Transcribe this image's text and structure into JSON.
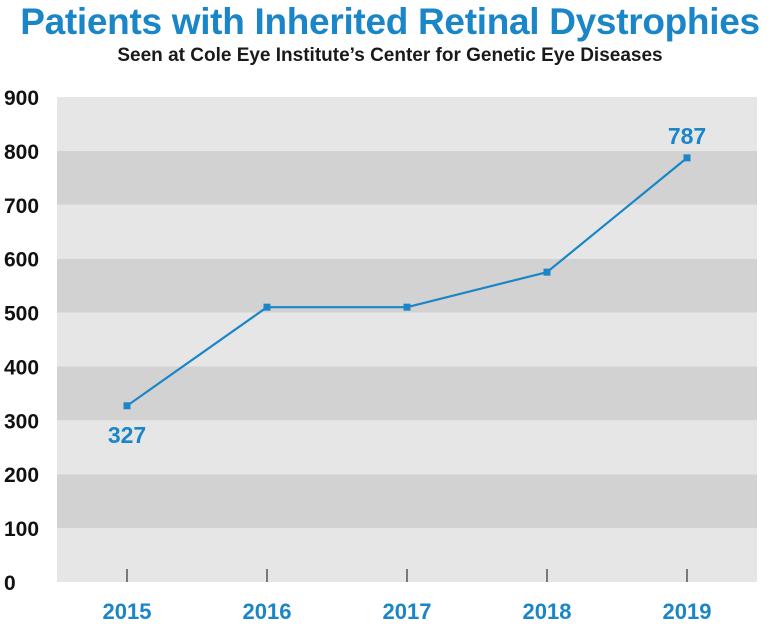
{
  "chart_data": {
    "type": "line",
    "title": "Patients with Inherited Retinal Dystrophies",
    "subtitle": "Seen at Cole Eye Institute’s Center for Genetic Eye Diseases",
    "categories": [
      "2015",
      "2016",
      "2017",
      "2018",
      "2019"
    ],
    "series": [
      {
        "values": [
          327,
          510,
          510,
          575,
          787
        ]
      }
    ],
    "data_labels": [
      {
        "category": "2015",
        "value": 327,
        "text": "327",
        "position": "below"
      },
      {
        "category": "2019",
        "value": 787,
        "text": "787",
        "position": "above"
      }
    ],
    "ylim": [
      0,
      900
    ],
    "yticks": [
      {
        "value": 0,
        "label": "0"
      },
      {
        "value": 100,
        "label": "100"
      },
      {
        "value": 200,
        "label": "200"
      },
      {
        "value": 300,
        "label": "300"
      },
      {
        "value": 400,
        "label": "400"
      },
      {
        "value": 500,
        "label": "500"
      },
      {
        "value": 600,
        "label": "600"
      },
      {
        "value": 700,
        "label": "700"
      },
      {
        "value": 800,
        "label": "800"
      },
      {
        "value": 900,
        "label": "900"
      }
    ],
    "grid": "alternating horizontal bands",
    "legend": "none",
    "colors": {
      "accent": "#1a86c8",
      "band_light": "#e6e6e7",
      "band_dark": "#d2d2d3",
      "axis_text": "#111111"
    }
  }
}
